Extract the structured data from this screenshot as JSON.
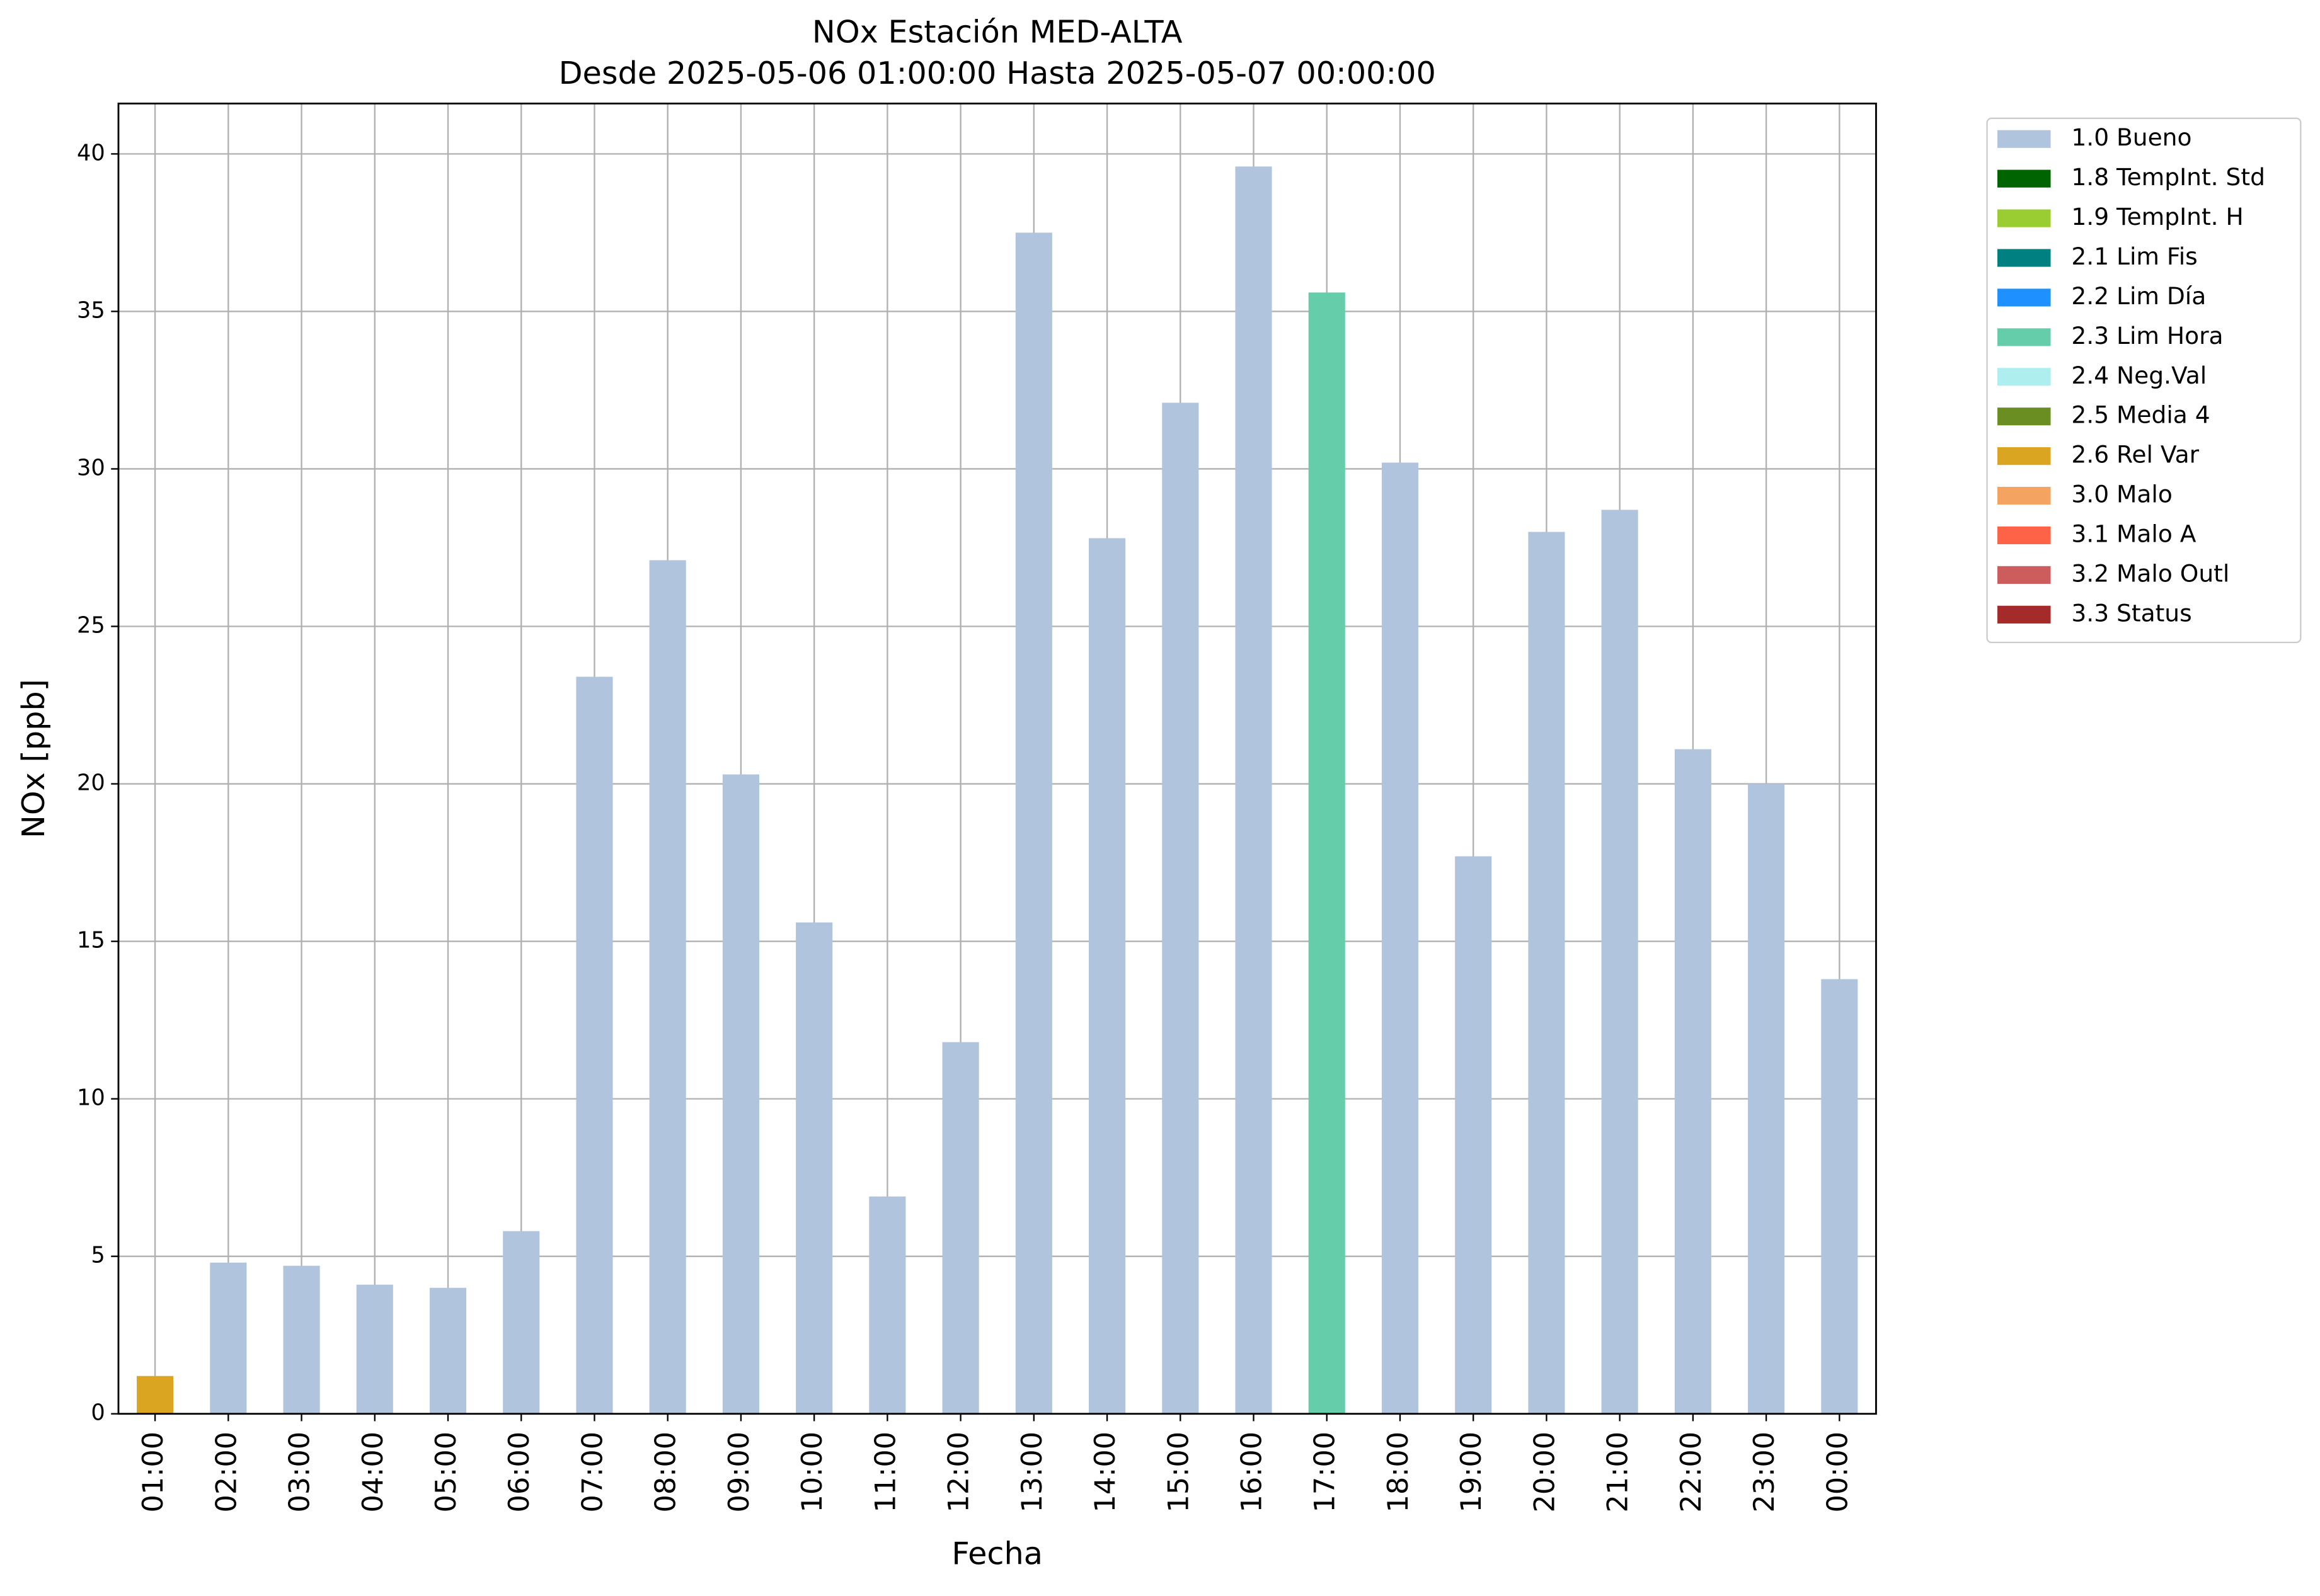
{
  "chart_data": {
    "type": "bar",
    "title": "NOx Estación MED-ALTA",
    "subtitle": "Desde 2025-05-06 01:00:00 Hasta 2025-05-07 00:00:00",
    "x_label": "Fecha",
    "y_label": "NOx [ppb]",
    "categories": [
      "01:00",
      "02:00",
      "03:00",
      "04:00",
      "05:00",
      "06:00",
      "07:00",
      "08:00",
      "09:00",
      "10:00",
      "11:00",
      "12:00",
      "13:00",
      "14:00",
      "15:00",
      "16:00",
      "17:00",
      "18:00",
      "19:00",
      "20:00",
      "21:00",
      "22:00",
      "23:00",
      "00:00"
    ],
    "series": [
      {
        "name": "1.0 Bueno",
        "color": "#b0c4de",
        "values": [
          null,
          4.8,
          4.7,
          4.1,
          4.0,
          5.8,
          23.4,
          27.1,
          20.3,
          15.6,
          6.9,
          11.8,
          37.5,
          27.8,
          32.1,
          39.6,
          null,
          30.2,
          17.7,
          28.0,
          28.7,
          21.1,
          20.0,
          13.8
        ]
      },
      {
        "name": "1.8 TempInt. Std",
        "color": "#006400",
        "values": [
          null,
          null,
          null,
          null,
          null,
          null,
          null,
          null,
          null,
          null,
          null,
          null,
          null,
          null,
          null,
          null,
          null,
          null,
          null,
          null,
          null,
          null,
          null,
          null
        ]
      },
      {
        "name": "1.9 TempInt. H",
        "color": "#9acd32",
        "values": [
          null,
          null,
          null,
          null,
          null,
          null,
          null,
          null,
          null,
          null,
          null,
          null,
          null,
          null,
          null,
          null,
          null,
          null,
          null,
          null,
          null,
          null,
          null,
          null
        ]
      },
      {
        "name": "2.1 Lim Fis",
        "color": "#008080",
        "values": [
          null,
          null,
          null,
          null,
          null,
          null,
          null,
          null,
          null,
          null,
          null,
          null,
          null,
          null,
          null,
          null,
          null,
          null,
          null,
          null,
          null,
          null,
          null,
          null
        ]
      },
      {
        "name": "2.2 Lim Día",
        "color": "#1e90ff",
        "values": [
          null,
          null,
          null,
          null,
          null,
          null,
          null,
          null,
          null,
          null,
          null,
          null,
          null,
          null,
          null,
          null,
          null,
          null,
          null,
          null,
          null,
          null,
          null,
          null
        ]
      },
      {
        "name": "2.3 Lim Hora",
        "color": "#66cdaa",
        "values": [
          null,
          null,
          null,
          null,
          null,
          null,
          null,
          null,
          null,
          null,
          null,
          null,
          null,
          null,
          null,
          null,
          35.6,
          null,
          null,
          null,
          null,
          null,
          null,
          null
        ]
      },
      {
        "name": "2.4 Neg.Val",
        "color": "#afeeee",
        "values": [
          null,
          null,
          null,
          null,
          null,
          null,
          null,
          null,
          null,
          null,
          null,
          null,
          null,
          null,
          null,
          null,
          null,
          null,
          null,
          null,
          null,
          null,
          null,
          null
        ]
      },
      {
        "name": "2.5 Media 4",
        "color": "#6b8e23",
        "values": [
          null,
          null,
          null,
          null,
          null,
          null,
          null,
          null,
          null,
          null,
          null,
          null,
          null,
          null,
          null,
          null,
          null,
          null,
          null,
          null,
          null,
          null,
          null,
          null
        ]
      },
      {
        "name": "2.6 Rel Var",
        "color": "#daa520",
        "values": [
          1.2,
          null,
          null,
          null,
          null,
          null,
          null,
          null,
          null,
          null,
          null,
          null,
          null,
          null,
          null,
          null,
          null,
          null,
          null,
          null,
          null,
          null,
          null,
          null
        ]
      },
      {
        "name": "3.0 Malo",
        "color": "#f4a460",
        "values": [
          null,
          null,
          null,
          null,
          null,
          null,
          null,
          null,
          null,
          null,
          null,
          null,
          null,
          null,
          null,
          null,
          null,
          null,
          null,
          null,
          null,
          null,
          null,
          null
        ]
      },
      {
        "name": "3.1 Malo A",
        "color": "#ff6347",
        "values": [
          null,
          null,
          null,
          null,
          null,
          null,
          null,
          null,
          null,
          null,
          null,
          null,
          null,
          null,
          null,
          null,
          null,
          null,
          null,
          null,
          null,
          null,
          null,
          null
        ]
      },
      {
        "name": "3.2 Malo Outl",
        "color": "#cd5c5c",
        "values": [
          null,
          null,
          null,
          null,
          null,
          null,
          null,
          null,
          null,
          null,
          null,
          null,
          null,
          null,
          null,
          null,
          null,
          null,
          null,
          null,
          null,
          null,
          null,
          null
        ]
      },
      {
        "name": "3.3 Status",
        "color": "#a52a2a",
        "values": [
          null,
          null,
          null,
          null,
          null,
          null,
          null,
          null,
          null,
          null,
          null,
          null,
          null,
          null,
          null,
          null,
          null,
          null,
          null,
          null,
          null,
          null,
          null,
          null
        ]
      }
    ],
    "ylim": [
      0,
      41.6
    ],
    "yticks": [
      0,
      5,
      10,
      15,
      20,
      25,
      30,
      35,
      40
    ],
    "grid": true,
    "legend": "outside-right"
  }
}
